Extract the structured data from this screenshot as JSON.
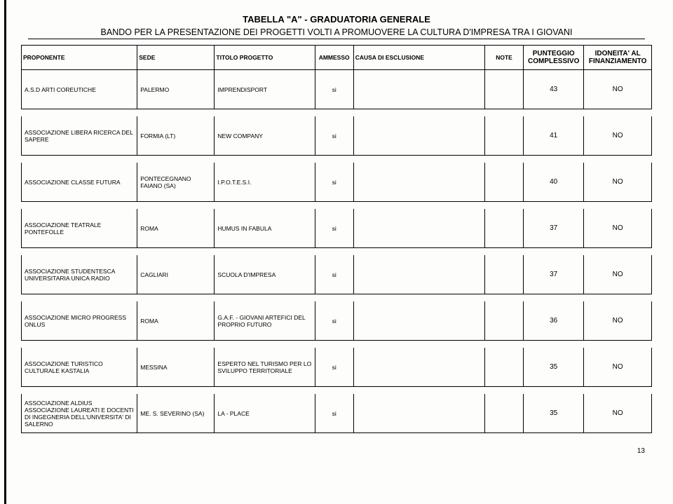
{
  "header": {
    "title": "TABELLA \"A\" - GRADUATORIA GENERALE",
    "subtitle": "BANDO PER LA PRESENTAZIONE DEI PROGETTI VOLTI A PROMUOVERE LA CULTURA D'IMPRESA TRA I GIOVANI"
  },
  "columns": {
    "proponente": "PROPONENTE",
    "sede": "SEDE",
    "titolo": "TITOLO PROGETTO",
    "ammesso": "AMMESSO",
    "causa": "CAUSA DI ESCLUSIONE",
    "note": "NOTE",
    "punteggio": "PUNTEGGIO COMPLESSIVO",
    "idoneita": "IDONEITA' AL FINANZIAMENTO"
  },
  "rows": [
    {
      "proponente": "A.S.D ARTI COREUTICHE",
      "sede": "PALERMO",
      "titolo": "IMPRENDISPORT",
      "ammesso": "si",
      "causa": "",
      "note": "",
      "punteggio": "43",
      "idoneita": "NO"
    },
    {
      "proponente": "ASSOCIAZIONE LIBERA RICERCA DEL SAPERE",
      "sede": "FORMIA (LT)",
      "titolo": "NEW COMPANY",
      "ammesso": "si",
      "causa": "",
      "note": "",
      "punteggio": "41",
      "idoneita": "NO"
    },
    {
      "proponente": "ASSOCIAZIONE CLASSE FUTURA",
      "sede": "PONTECEGNANO FAIANO (SA)",
      "titolo": "I.P.O.T.E.S.I.",
      "ammesso": "si",
      "causa": "",
      "note": "",
      "punteggio": "40",
      "idoneita": "NO"
    },
    {
      "proponente": "ASSOCIAZIONE TEATRALE PONTEFOLLE",
      "sede": "ROMA",
      "titolo": "HUMUS IN FABULA",
      "ammesso": "si",
      "causa": "",
      "note": "",
      "punteggio": "37",
      "idoneita": "NO"
    },
    {
      "proponente": "ASSOCIAZIONE STUDENTESCA UNIVERSITARIA UNICA RADIO",
      "sede": "CAGLIARI",
      "titolo": "SCUOLA D'IMPRESA",
      "ammesso": "si",
      "causa": "",
      "note": "",
      "punteggio": "37",
      "idoneita": "NO"
    },
    {
      "proponente": "ASSOCIAZIONE MICRO PROGRESS ONLUS",
      "sede": "ROMA",
      "titolo": "G.A.F. - GIOVANI ARTEFICI DEL PROPRIO FUTURO",
      "ammesso": "si",
      "causa": "",
      "note": "",
      "punteggio": "36",
      "idoneita": "NO"
    },
    {
      "proponente": "ASSOCIAZIONE TURISTICO CULTURALE KASTALIA",
      "sede": "MESSINA",
      "titolo": "ESPERTO NEL TURISMO PER LO SVILUPPO TERRITORIALE",
      "ammesso": "si",
      "causa": "",
      "note": "",
      "punteggio": "35",
      "idoneita": "NO"
    },
    {
      "proponente": "ASSOCIAZIONE ALDIUS ASSOCIAZIONE LAUREATI E DOCENTI DI INGEGNERIA DELL'UNIVERSITA' DI SALERNO",
      "sede": "ME. S. SEVERINO (SA)",
      "titolo": "LA - PLACE",
      "ammesso": "si",
      "causa": "",
      "note": "",
      "punteggio": "35",
      "idoneita": "NO"
    }
  ],
  "page_number": "13"
}
